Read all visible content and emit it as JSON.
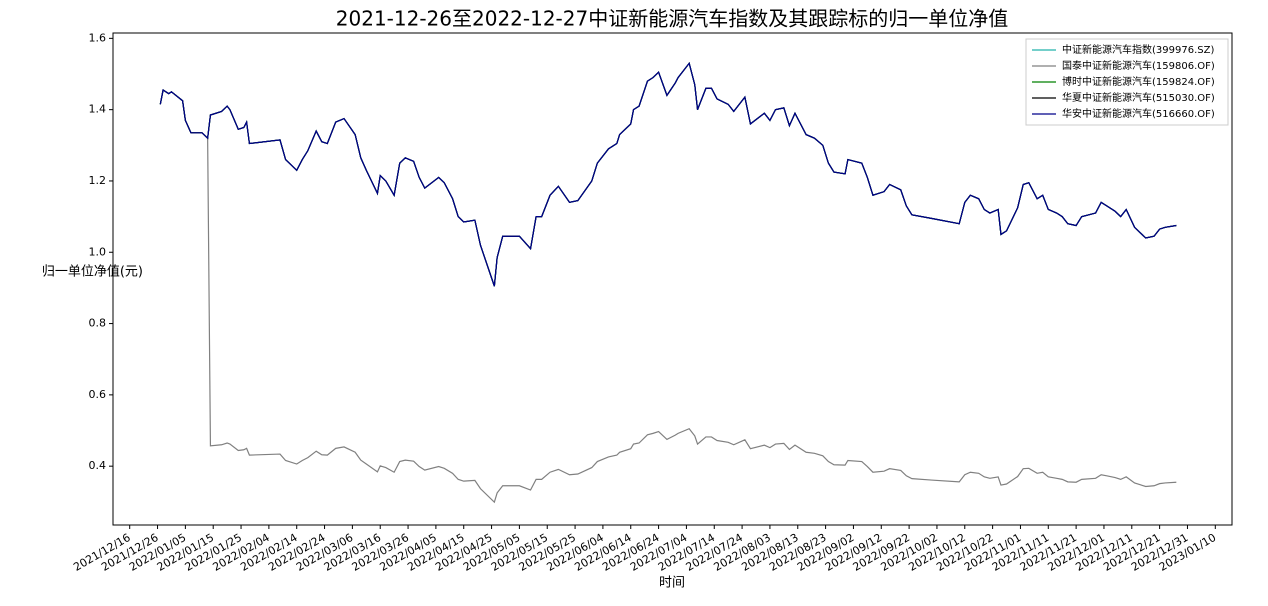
{
  "chart_data": {
    "type": "line",
    "title": "2021-12-26至2022-12-27中证新能源汽车指数及其跟踪标的归一单位净值",
    "x_label": "时间",
    "y_label": "归一单位净值(元)",
    "xlim": [
      "2021/12/10",
      "2023/01/16"
    ],
    "ylim": [
      0.235,
      1.615
    ],
    "xticks": [
      "2021/12/16",
      "2021/12/26",
      "2022/01/05",
      "2022/01/15",
      "2022/01/25",
      "2022/02/04",
      "2022/02/14",
      "2022/02/24",
      "2022/03/06",
      "2022/03/16",
      "2022/03/26",
      "2022/04/05",
      "2022/04/15",
      "2022/04/25",
      "2022/05/05",
      "2022/05/15",
      "2022/05/25",
      "2022/06/04",
      "2022/06/14",
      "2022/06/24",
      "2022/07/04",
      "2022/07/14",
      "2022/07/24",
      "2022/08/03",
      "2022/08/13",
      "2022/08/23",
      "2022/09/02",
      "2022/09/12",
      "2022/09/22",
      "2022/10/02",
      "2022/10/12",
      "2022/10/22",
      "2022/11/01",
      "2022/11/11",
      "2022/11/21",
      "2022/12/01",
      "2022/12/11",
      "2022/12/21",
      "2022/12/31",
      "2023/01/10"
    ],
    "yticks": [
      0.4,
      0.6,
      0.8,
      {
        "value": 1,
        "label": "1.0"
      },
      1.2,
      1.4,
      1.6
    ],
    "legend": "upper right",
    "x": [
      "2021/12/27",
      "2021/12/28",
      "2021/12/30",
      "2021/12/31",
      "2022/01/04",
      "2022/01/05",
      "2022/01/07",
      "2022/01/11",
      "2022/01/13",
      "2022/01/14",
      "2022/01/18",
      "2022/01/20",
      "2022/01/21",
      "2022/01/24",
      "2022/01/26",
      "2022/01/27",
      "2022/01/28",
      "2022/02/08",
      "2022/02/10",
      "2022/02/14",
      "2022/02/16",
      "2022/02/18",
      "2022/02/21",
      "2022/02/23",
      "2022/02/25",
      "2022/02/28",
      "2022/03/03",
      "2022/03/07",
      "2022/03/09",
      "2022/03/11",
      "2022/03/15",
      "2022/03/16",
      "2022/03/18",
      "2022/03/21",
      "2022/03/23",
      "2022/03/25",
      "2022/03/28",
      "2022/03/30",
      "2022/04/01",
      "2022/04/06",
      "2022/04/08",
      "2022/04/11",
      "2022/04/13",
      "2022/04/15",
      "2022/04/19",
      "2022/04/21",
      "2022/04/26",
      "2022/04/27",
      "2022/04/29",
      "2022/05/05",
      "2022/05/09",
      "2022/05/11",
      "2022/05/13",
      "2022/05/16",
      "2022/05/19",
      "2022/05/23",
      "2022/05/26",
      "2022/05/31",
      "2022/06/02",
      "2022/06/06",
      "2022/06/09",
      "2022/06/10",
      "2022/06/14",
      "2022/06/15",
      "2022/06/17",
      "2022/06/20",
      "2022/06/22",
      "2022/06/24",
      "2022/06/27",
      "2022/06/30",
      "2022/07/01",
      "2022/07/05",
      "2022/07/07",
      "2022/07/08",
      "2022/07/11",
      "2022/07/13",
      "2022/07/15",
      "2022/07/19",
      "2022/07/21",
      "2022/07/25",
      "2022/07/27",
      "2022/08/01",
      "2022/08/03",
      "2022/08/05",
      "2022/08/08",
      "2022/08/10",
      "2022/08/12",
      "2022/08/16",
      "2022/08/19",
      "2022/08/22",
      "2022/08/24",
      "2022/08/26",
      "2022/08/30",
      "2022/08/31",
      "2022/09/05",
      "2022/09/07",
      "2022/09/09",
      "2022/09/13",
      "2022/09/15",
      "2022/09/19",
      "2022/09/21",
      "2022/09/23",
      "2022/09/30",
      "2022/10/10",
      "2022/10/12",
      "2022/10/14",
      "2022/10/17",
      "2022/10/19",
      "2022/10/21",
      "2022/10/24",
      "2022/10/25",
      "2022/10/27",
      "2022/10/31",
      "2022/11/02",
      "2022/11/04",
      "2022/11/07",
      "2022/11/09",
      "2022/11/11",
      "2022/11/14",
      "2022/11/16",
      "2022/11/18",
      "2022/11/21",
      "2022/11/23",
      "2022/11/28",
      "2022/11/30",
      "2022/12/02",
      "2022/12/05",
      "2022/12/07",
      "2022/12/09",
      "2022/12/12",
      "2022/12/14",
      "2022/12/16",
      "2022/12/19",
      "2022/12/21",
      "2022/12/23",
      "2022/12/27"
    ],
    "series": [
      {
        "name": "中证新能源汽车指数(399976.SZ)",
        "color": "#20b2aa",
        "values": [
          1.415,
          1.455,
          1.445,
          1.45,
          1.425,
          1.37,
          1.335,
          1.335,
          1.32,
          1.385,
          1.395,
          1.41,
          1.4,
          1.345,
          1.35,
          1.365,
          1.305,
          1.315,
          1.26,
          1.23,
          1.26,
          1.285,
          1.34,
          1.31,
          1.305,
          1.365,
          1.375,
          1.33,
          1.265,
          1.23,
          1.165,
          1.215,
          1.2,
          1.16,
          1.25,
          1.265,
          1.255,
          1.21,
          1.18,
          1.21,
          1.195,
          1.15,
          1.1,
          1.085,
          1.09,
          1.02,
          0.905,
          0.985,
          1.045,
          1.045,
          1.01,
          1.1,
          1.1,
          1.16,
          1.185,
          1.14,
          1.145,
          1.2,
          1.25,
          1.29,
          1.305,
          1.33,
          1.36,
          1.4,
          1.41,
          1.48,
          1.49,
          1.505,
          1.44,
          1.475,
          1.49,
          1.53,
          1.47,
          1.4,
          1.46,
          1.46,
          1.43,
          1.415,
          1.395,
          1.435,
          1.36,
          1.39,
          1.37,
          1.4,
          1.405,
          1.355,
          1.39,
          1.33,
          1.32,
          1.3,
          1.25,
          1.225,
          1.22,
          1.26,
          1.25,
          1.21,
          1.16,
          1.17,
          1.19,
          1.175,
          1.13,
          1.105,
          1.095,
          1.08,
          1.14,
          1.16,
          1.15,
          1.12,
          1.11,
          1.12,
          1.05,
          1.06,
          1.125,
          1.19,
          1.195,
          1.15,
          1.16,
          1.12,
          1.11,
          1.1,
          1.08,
          1.075,
          1.1,
          1.11,
          1.14,
          1.13,
          1.115,
          1.1,
          1.12,
          1.07,
          1.055,
          1.04,
          1.045,
          1.065,
          1.07,
          1.075
        ]
      },
      {
        "name": "国泰中证新能源汽车(159806.OF)",
        "color": "#808080",
        "values": [
          1.415,
          1.455,
          1.445,
          1.45,
          1.425,
          1.37,
          1.335,
          1.335,
          1.32,
          0.457,
          0.46,
          0.465,
          0.462,
          0.444,
          0.446,
          0.45,
          0.431,
          0.434,
          0.416,
          0.406,
          0.416,
          0.424,
          0.442,
          0.432,
          0.431,
          0.45,
          0.454,
          0.439,
          0.417,
          0.406,
          0.384,
          0.401,
          0.396,
          0.383,
          0.413,
          0.417,
          0.414,
          0.399,
          0.389,
          0.399,
          0.394,
          0.38,
          0.363,
          0.358,
          0.36,
          0.337,
          0.299,
          0.325,
          0.345,
          0.345,
          0.333,
          0.363,
          0.363,
          0.383,
          0.391,
          0.376,
          0.378,
          0.396,
          0.413,
          0.426,
          0.431,
          0.439,
          0.449,
          0.462,
          0.465,
          0.488,
          0.492,
          0.497,
          0.475,
          0.487,
          0.492,
          0.505,
          0.485,
          0.462,
          0.482,
          0.482,
          0.472,
          0.467,
          0.46,
          0.474,
          0.449,
          0.459,
          0.452,
          0.462,
          0.464,
          0.447,
          0.459,
          0.439,
          0.436,
          0.429,
          0.413,
          0.404,
          0.403,
          0.416,
          0.413,
          0.399,
          0.383,
          0.386,
          0.393,
          0.388,
          0.373,
          0.365,
          0.361,
          0.356,
          0.376,
          0.383,
          0.38,
          0.37,
          0.366,
          0.37,
          0.347,
          0.35,
          0.371,
          0.393,
          0.394,
          0.38,
          0.383,
          0.37,
          0.366,
          0.363,
          0.356,
          0.355,
          0.363,
          0.366,
          0.376,
          0.373,
          0.368,
          0.363,
          0.37,
          0.353,
          0.348,
          0.343,
          0.345,
          0.351,
          0.353,
          0.355
        ]
      },
      {
        "name": "博时中证新能源汽车(159824.OF)",
        "color": "#008000",
        "values": [
          1.415,
          1.455,
          1.445,
          1.45,
          1.425,
          1.37,
          1.335,
          1.335,
          1.32,
          1.385,
          1.395,
          1.41,
          1.4,
          1.345,
          1.35,
          1.365,
          1.305,
          1.315,
          1.26,
          1.23,
          1.26,
          1.285,
          1.34,
          1.31,
          1.305,
          1.365,
          1.375,
          1.33,
          1.265,
          1.23,
          1.165,
          1.215,
          1.2,
          1.16,
          1.25,
          1.265,
          1.255,
          1.21,
          1.18,
          1.21,
          1.195,
          1.15,
          1.1,
          1.085,
          1.09,
          1.02,
          0.905,
          0.985,
          1.045,
          1.045,
          1.01,
          1.1,
          1.1,
          1.16,
          1.185,
          1.14,
          1.145,
          1.2,
          1.25,
          1.29,
          1.305,
          1.33,
          1.36,
          1.4,
          1.41,
          1.48,
          1.49,
          1.505,
          1.44,
          1.475,
          1.49,
          1.53,
          1.47,
          1.4,
          1.46,
          1.46,
          1.43,
          1.415,
          1.395,
          1.435,
          1.36,
          1.39,
          1.37,
          1.4,
          1.405,
          1.355,
          1.39,
          1.33,
          1.32,
          1.3,
          1.25,
          1.225,
          1.22,
          1.26,
          1.25,
          1.21,
          1.16,
          1.17,
          1.19,
          1.175,
          1.13,
          1.105,
          1.095,
          1.08,
          1.14,
          1.16,
          1.15,
          1.12,
          1.11,
          1.12,
          1.05,
          1.06,
          1.125,
          1.19,
          1.195,
          1.15,
          1.16,
          1.12,
          1.11,
          1.1,
          1.08,
          1.075,
          1.1,
          1.11,
          1.14,
          1.13,
          1.115,
          1.1,
          1.12,
          1.07,
          1.055,
          1.04,
          1.045,
          1.065,
          1.07,
          1.075
        ]
      },
      {
        "name": "华夏中证新能源汽车(515030.OF)",
        "color": "#000000",
        "values": [
          1.415,
          1.455,
          1.445,
          1.45,
          1.425,
          1.37,
          1.335,
          1.335,
          1.32,
          1.385,
          1.395,
          1.41,
          1.4,
          1.345,
          1.35,
          1.365,
          1.305,
          1.315,
          1.26,
          1.23,
          1.26,
          1.285,
          1.34,
          1.31,
          1.305,
          1.365,
          1.375,
          1.33,
          1.265,
          1.23,
          1.165,
          1.215,
          1.2,
          1.16,
          1.25,
          1.265,
          1.255,
          1.21,
          1.18,
          1.21,
          1.195,
          1.15,
          1.1,
          1.085,
          1.09,
          1.02,
          0.905,
          0.985,
          1.045,
          1.045,
          1.01,
          1.1,
          1.1,
          1.16,
          1.185,
          1.14,
          1.145,
          1.2,
          1.25,
          1.29,
          1.305,
          1.33,
          1.36,
          1.4,
          1.41,
          1.48,
          1.49,
          1.505,
          1.44,
          1.475,
          1.49,
          1.53,
          1.47,
          1.4,
          1.46,
          1.46,
          1.43,
          1.415,
          1.395,
          1.435,
          1.36,
          1.39,
          1.37,
          1.4,
          1.405,
          1.355,
          1.39,
          1.33,
          1.32,
          1.3,
          1.25,
          1.225,
          1.22,
          1.26,
          1.25,
          1.21,
          1.16,
          1.17,
          1.19,
          1.175,
          1.13,
          1.105,
          1.095,
          1.08,
          1.14,
          1.16,
          1.15,
          1.12,
          1.11,
          1.12,
          1.05,
          1.06,
          1.125,
          1.19,
          1.195,
          1.15,
          1.16,
          1.12,
          1.11,
          1.1,
          1.08,
          1.075,
          1.1,
          1.11,
          1.14,
          1.13,
          1.115,
          1.1,
          1.12,
          1.07,
          1.055,
          1.04,
          1.045,
          1.065,
          1.07,
          1.075
        ]
      },
      {
        "name": "华安中证新能源汽车(516660.OF)",
        "color": "#00008b",
        "values": [
          1.415,
          1.455,
          1.445,
          1.45,
          1.425,
          1.37,
          1.335,
          1.335,
          1.32,
          1.385,
          1.395,
          1.41,
          1.4,
          1.345,
          1.35,
          1.365,
          1.305,
          1.315,
          1.26,
          1.23,
          1.26,
          1.285,
          1.34,
          1.31,
          1.305,
          1.365,
          1.375,
          1.33,
          1.265,
          1.23,
          1.165,
          1.215,
          1.2,
          1.16,
          1.25,
          1.265,
          1.255,
          1.21,
          1.18,
          1.21,
          1.195,
          1.15,
          1.1,
          1.085,
          1.09,
          1.02,
          0.905,
          0.985,
          1.045,
          1.045,
          1.01,
          1.1,
          1.1,
          1.16,
          1.185,
          1.14,
          1.145,
          1.2,
          1.25,
          1.29,
          1.305,
          1.33,
          1.36,
          1.4,
          1.41,
          1.48,
          1.49,
          1.505,
          1.44,
          1.475,
          1.49,
          1.53,
          1.47,
          1.4,
          1.46,
          1.46,
          1.43,
          1.415,
          1.395,
          1.435,
          1.36,
          1.39,
          1.37,
          1.4,
          1.405,
          1.355,
          1.39,
          1.33,
          1.32,
          1.3,
          1.25,
          1.225,
          1.22,
          1.26,
          1.25,
          1.21,
          1.16,
          1.17,
          1.19,
          1.175,
          1.13,
          1.105,
          1.095,
          1.08,
          1.14,
          1.16,
          1.15,
          1.12,
          1.11,
          1.12,
          1.05,
          1.06,
          1.125,
          1.19,
          1.195,
          1.15,
          1.16,
          1.12,
          1.11,
          1.1,
          1.08,
          1.075,
          1.1,
          1.11,
          1.14,
          1.13,
          1.115,
          1.1,
          1.12,
          1.07,
          1.055,
          1.04,
          1.045,
          1.065,
          1.07,
          1.075
        ]
      }
    ]
  }
}
